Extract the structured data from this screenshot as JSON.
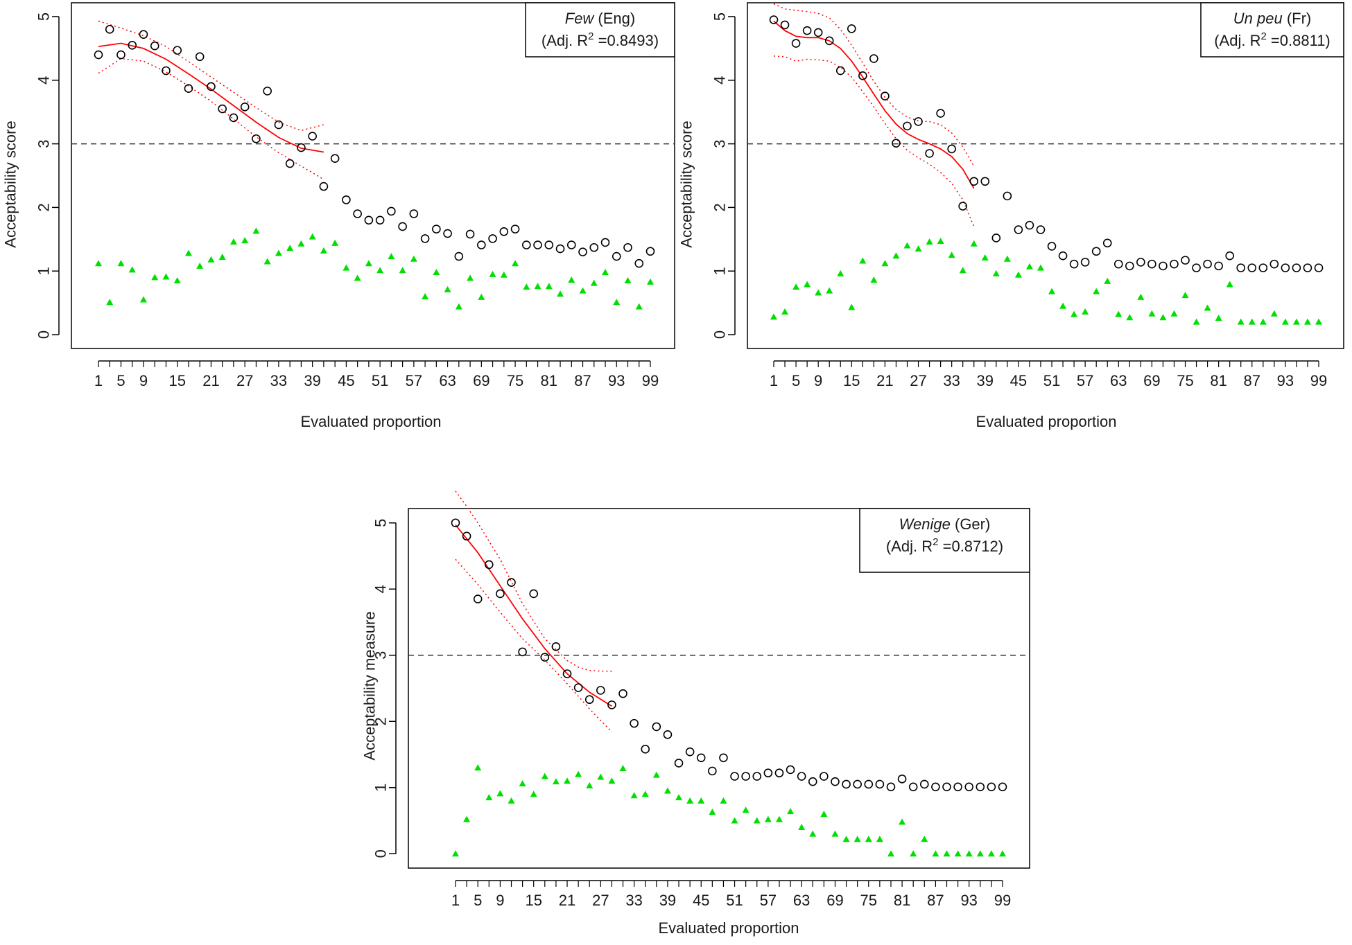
{
  "colors": {
    "observed": "#000000",
    "lower_bound": "#00e000",
    "fit": "#ff0000",
    "threshold": "#333333"
  },
  "chart_data": [
    {
      "type": "scatter",
      "legend": {
        "name": "Few",
        "lang": " (Eng)",
        "stat": "(Adj. R",
        "sup": "2",
        "value": " =0.8493)"
      },
      "xlabel": "Evaluated proportion",
      "ylabel": "Acceptability score",
      "xticks": [
        "1",
        "5",
        "9",
        "15",
        "21",
        "27",
        "33",
        "39",
        "45",
        "51",
        "57",
        "63",
        "69",
        "75",
        "81",
        "87",
        "93",
        "99"
      ],
      "yticks": [
        "0",
        "1",
        "2",
        "3",
        "4",
        "5"
      ],
      "ylim": [
        0,
        5
      ],
      "threshold": 3,
      "x": [
        1,
        3,
        5,
        7,
        9,
        11,
        13,
        15,
        17,
        19,
        21,
        23,
        25,
        27,
        29,
        31,
        33,
        35,
        37,
        39,
        41,
        43,
        45,
        47,
        49,
        51,
        53,
        55,
        57,
        59,
        61,
        63,
        65,
        67,
        69,
        71,
        73,
        75,
        77,
        79,
        81,
        83,
        85,
        87,
        89,
        91,
        93,
        95,
        97,
        99
      ],
      "observed": [
        4.4,
        4.8,
        4.4,
        4.55,
        4.72,
        4.54,
        4.15,
        4.47,
        3.87,
        4.37,
        3.9,
        3.55,
        3.41,
        3.58,
        3.08,
        3.83,
        3.3,
        2.69,
        2.94,
        3.12,
        2.33,
        2.77,
        2.12,
        1.9,
        1.8,
        1.8,
        1.94,
        1.7,
        1.9,
        1.51,
        1.66,
        1.59,
        1.23,
        1.58,
        1.41,
        1.51,
        1.62,
        1.66,
        1.41,
        1.41,
        1.41,
        1.35,
        1.41,
        1.3,
        1.37,
        1.45,
        1.23,
        1.37,
        1.12,
        1.31
      ],
      "lower": [
        1.12,
        0.51,
        1.12,
        1.02,
        0.55,
        0.9,
        0.91,
        0.85,
        1.28,
        1.08,
        1.18,
        1.22,
        1.46,
        1.48,
        1.63,
        1.15,
        1.28,
        1.36,
        1.43,
        1.54,
        1.32,
        1.44,
        1.05,
        0.89,
        1.12,
        1.01,
        1.23,
        1.01,
        1.19,
        0.6,
        0.98,
        0.71,
        0.44,
        0.89,
        0.59,
        0.95,
        0.94,
        1.12,
        0.75,
        0.76,
        0.76,
        0.64,
        0.86,
        0.69,
        0.81,
        0.98,
        0.51,
        0.85,
        0.44,
        0.83
      ],
      "fit": {
        "x": [
          1,
          5,
          9,
          13,
          17,
          21,
          25,
          29,
          33,
          37,
          41
        ],
        "y": [
          4.53,
          4.58,
          4.5,
          4.33,
          4.1,
          3.86,
          3.6,
          3.34,
          3.1,
          2.93,
          2.87
        ]
      },
      "ci_upper": {
        "x": [
          1,
          5,
          9,
          13,
          17,
          21,
          25,
          29,
          33,
          37,
          41
        ],
        "y": [
          4.93,
          4.82,
          4.7,
          4.53,
          4.29,
          4.05,
          3.81,
          3.57,
          3.34,
          3.21,
          3.3
        ]
      },
      "ci_lower": {
        "x": [
          1,
          5,
          9,
          13,
          17,
          21,
          25,
          29,
          33,
          37,
          41
        ],
        "y": [
          4.11,
          4.34,
          4.3,
          4.13,
          3.91,
          3.67,
          3.39,
          3.11,
          2.86,
          2.65,
          2.44
        ]
      }
    },
    {
      "type": "scatter",
      "legend": {
        "name": "Un peu",
        "lang": " (Fr)",
        "stat": "(Adj. R",
        "sup": "2",
        "value": " =0.8811)"
      },
      "xlabel": "Evaluated proportion",
      "ylabel": "Acceptability score",
      "xticks": [
        "1",
        "5",
        "9",
        "15",
        "21",
        "27",
        "33",
        "39",
        "45",
        "51",
        "57",
        "63",
        "69",
        "75",
        "81",
        "87",
        "93",
        "99"
      ],
      "yticks": [
        "0",
        "1",
        "2",
        "3",
        "4",
        "5"
      ],
      "ylim": [
        0,
        5
      ],
      "threshold": 3,
      "x": [
        1,
        3,
        5,
        7,
        9,
        11,
        13,
        15,
        17,
        19,
        21,
        23,
        25,
        27,
        29,
        31,
        33,
        35,
        37,
        39,
        41,
        43,
        45,
        47,
        49,
        51,
        53,
        55,
        57,
        59,
        61,
        63,
        65,
        67,
        69,
        71,
        73,
        75,
        77,
        79,
        81,
        83,
        85,
        87,
        89,
        91,
        93,
        95,
        97,
        99
      ],
      "observed": [
        4.95,
        4.87,
        4.58,
        4.78,
        4.75,
        4.62,
        4.15,
        4.81,
        4.07,
        4.34,
        3.75,
        3.01,
        3.28,
        3.35,
        2.85,
        3.48,
        2.92,
        2.02,
        2.41,
        2.41,
        1.52,
        2.18,
        1.65,
        1.72,
        1.65,
        1.39,
        1.24,
        1.11,
        1.14,
        1.31,
        1.44,
        1.11,
        1.08,
        1.14,
        1.11,
        1.08,
        1.11,
        1.17,
        1.05,
        1.11,
        1.08,
        1.24,
        1.05,
        1.05,
        1.05,
        1.11,
        1.05,
        1.05,
        1.05,
        1.05
      ],
      "lower": [
        0.28,
        0.36,
        0.75,
        0.79,
        0.66,
        0.69,
        0.96,
        0.43,
        1.16,
        0.86,
        1.12,
        1.24,
        1.4,
        1.35,
        1.46,
        1.47,
        1.25,
        1.01,
        1.43,
        1.21,
        0.96,
        1.19,
        0.94,
        1.07,
        1.05,
        0.68,
        0.45,
        0.32,
        0.36,
        0.68,
        0.84,
        0.32,
        0.27,
        0.59,
        0.33,
        0.27,
        0.33,
        0.62,
        0.2,
        0.42,
        0.26,
        0.79,
        0.2,
        0.2,
        0.2,
        0.33,
        0.2,
        0.2,
        0.2,
        0.2
      ],
      "fit": {
        "x": [
          1,
          3,
          5,
          7,
          9,
          11,
          13,
          15,
          17,
          19,
          21,
          23,
          25,
          27,
          29,
          31,
          33,
          35,
          37
        ],
        "y": [
          4.93,
          4.78,
          4.69,
          4.67,
          4.67,
          4.62,
          4.5,
          4.3,
          4.05,
          3.78,
          3.52,
          3.31,
          3.16,
          3.07,
          3.0,
          2.92,
          2.8,
          2.6,
          2.3
        ]
      },
      "ci_upper": {
        "x": [
          1,
          3,
          5,
          7,
          9,
          11,
          13,
          15,
          17,
          19,
          21,
          23,
          25,
          27,
          29,
          31,
          33,
          35,
          37
        ],
        "y": [
          5.2,
          5.12,
          5.1,
          5.08,
          5.05,
          4.98,
          4.8,
          4.55,
          4.27,
          3.98,
          3.73,
          3.54,
          3.42,
          3.36,
          3.35,
          3.3,
          3.17,
          2.95,
          2.65
        ]
      },
      "ci_lower": {
        "x": [
          1,
          3,
          5,
          7,
          9,
          11,
          13,
          15,
          17,
          19,
          21,
          23,
          25,
          27,
          29,
          31,
          33,
          35,
          37
        ],
        "y": [
          4.38,
          4.37,
          4.3,
          4.33,
          4.32,
          4.3,
          4.2,
          4.05,
          3.82,
          3.58,
          3.32,
          3.08,
          2.9,
          2.78,
          2.68,
          2.55,
          2.38,
          2.12,
          1.7
        ]
      }
    },
    {
      "type": "scatter",
      "legend": {
        "name": "Wenige",
        "lang": " (Ger)",
        "stat": "(Adj. R",
        "sup": "2",
        "value": " =0.8712)"
      },
      "xlabel": "Evaluated proportion",
      "ylabel": "Acceptability measure",
      "xticks": [
        "1",
        "5",
        "9",
        "15",
        "21",
        "27",
        "33",
        "39",
        "45",
        "51",
        "57",
        "63",
        "69",
        "75",
        "81",
        "87",
        "93",
        "99"
      ],
      "yticks": [
        "0",
        "1",
        "2",
        "3",
        "4",
        "5"
      ],
      "ylim": [
        0,
        5
      ],
      "threshold": 3,
      "x": [
        1,
        3,
        5,
        7,
        9,
        11,
        13,
        15,
        17,
        19,
        21,
        23,
        25,
        27,
        29,
        31,
        33,
        35,
        37,
        39,
        41,
        43,
        45,
        47,
        49,
        51,
        53,
        55,
        57,
        59,
        61,
        63,
        65,
        67,
        69,
        71,
        73,
        75,
        77,
        79,
        81,
        83,
        85,
        87,
        89,
        91,
        93,
        95,
        97,
        99
      ],
      "observed": [
        5.0,
        4.8,
        3.85,
        4.37,
        3.93,
        4.1,
        3.05,
        3.93,
        2.97,
        3.13,
        2.72,
        2.51,
        2.33,
        2.47,
        2.25,
        2.42,
        1.97,
        1.58,
        1.92,
        1.8,
        1.37,
        1.54,
        1.45,
        1.25,
        1.45,
        1.17,
        1.17,
        1.17,
        1.22,
        1.22,
        1.27,
        1.17,
        1.09,
        1.17,
        1.09,
        1.05,
        1.05,
        1.05,
        1.05,
        1.01,
        1.13,
        1.01,
        1.05,
        1.01,
        1.01,
        1.01,
        1.01,
        1.01,
        1.01,
        1.01
      ],
      "lower": [
        0.0,
        0.52,
        1.3,
        0.85,
        0.91,
        0.8,
        1.06,
        0.9,
        1.17,
        1.09,
        1.1,
        1.2,
        1.03,
        1.16,
        1.1,
        1.29,
        0.88,
        0.9,
        1.19,
        0.95,
        0.85,
        0.8,
        0.8,
        0.63,
        0.8,
        0.5,
        0.66,
        0.5,
        0.52,
        0.52,
        0.64,
        0.4,
        0.3,
        0.6,
        0.3,
        0.22,
        0.22,
        0.22,
        0.22,
        0.0,
        0.48,
        0.0,
        0.22,
        0.0,
        0.0,
        0.0,
        0.0,
        0.0,
        0.0,
        0.0
      ],
      "fit": {
        "x": [
          1,
          5,
          9,
          13,
          17,
          21,
          25,
          29
        ],
        "y": [
          4.97,
          4.55,
          4.05,
          3.55,
          3.1,
          2.72,
          2.44,
          2.23
        ]
      },
      "ci_upper": {
        "x": [
          1,
          3,
          5,
          9,
          13,
          17,
          21,
          23,
          25,
          27,
          29
        ],
        "y": [
          5.48,
          5.25,
          5.0,
          4.45,
          3.78,
          3.25,
          2.92,
          2.82,
          2.77,
          2.76,
          2.76
        ]
      },
      "ci_lower": {
        "x": [
          1,
          5,
          9,
          13,
          17,
          21,
          25,
          29
        ],
        "y": [
          4.45,
          4.07,
          3.65,
          3.25,
          2.93,
          2.57,
          2.19,
          1.84
        ]
      }
    }
  ]
}
